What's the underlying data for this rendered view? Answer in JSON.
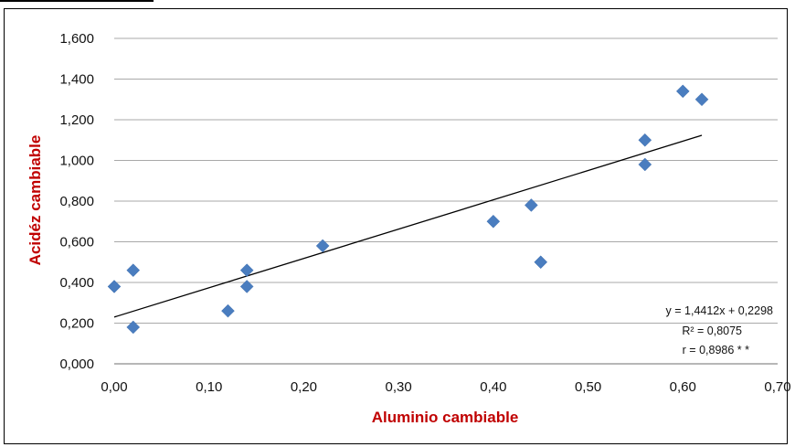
{
  "colors": {
    "point": "#4a7dbf",
    "trendline": "#000000",
    "grid": "#8c8c8c",
    "axis_title": "#c00000",
    "text": "#111111"
  },
  "chart_data": {
    "type": "scatter",
    "title": "",
    "xlabel": "Aluminio cambiable",
    "ylabel": "Acidéz cambiable",
    "xlim": [
      0,
      0.7
    ],
    "ylim": [
      0,
      1.6
    ],
    "x_ticks": [
      0,
      0.1,
      0.2,
      0.3,
      0.4,
      0.5,
      0.6,
      0.7
    ],
    "x_tick_labels": [
      "0,00",
      "0,10",
      "0,20",
      "0,30",
      "0,40",
      "0,50",
      "0,60",
      "0,70"
    ],
    "y_ticks": [
      0,
      0.2,
      0.4,
      0.6,
      0.8,
      1.0,
      1.2,
      1.4,
      1.6
    ],
    "y_tick_labels": [
      "0,000",
      "0,200",
      "0,400",
      "0,600",
      "0,800",
      "1,000",
      "1,200",
      "1,400",
      "1,600"
    ],
    "grid": "horizontal",
    "series": [
      {
        "marker": "diamond",
        "x": [
          0.0,
          0.02,
          0.02,
          0.12,
          0.14,
          0.14,
          0.22,
          0.4,
          0.44,
          0.45,
          0.56,
          0.56,
          0.6,
          0.62
        ],
        "y": [
          0.38,
          0.46,
          0.18,
          0.26,
          0.46,
          0.38,
          0.58,
          0.7,
          0.78,
          0.5,
          1.1,
          0.98,
          1.34,
          1.3
        ]
      }
    ],
    "trendline": {
      "slope": 1.4412,
      "intercept": 0.2298,
      "x_range": [
        0,
        0.62
      ]
    },
    "annotations": [
      "y = 1,4412x + 0,2298",
      "R² = 0,8075",
      "r = 0,8986 * *"
    ]
  }
}
